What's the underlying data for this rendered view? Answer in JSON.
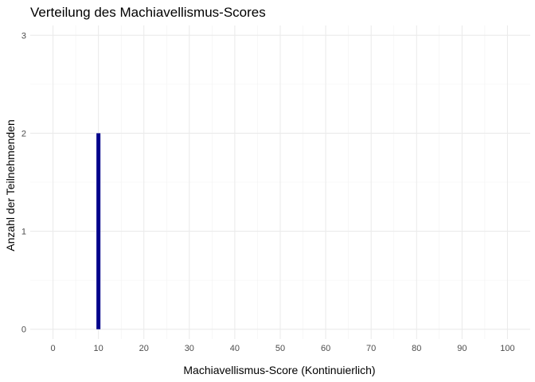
{
  "chart_data": {
    "type": "bar",
    "title": "Verteilung des Machiavellismus-Scores",
    "xlabel": "Machiavellismus-Score (Kontinuierlich)",
    "ylabel": "Anzahl der Teilnehmenden",
    "x_ticks": [
      "0",
      "10",
      "20",
      "30",
      "40",
      "50",
      "60",
      "70",
      "80",
      "90",
      "100"
    ],
    "y_ticks": [
      "0",
      "1",
      "2",
      "3"
    ],
    "xlim": [
      -5,
      105
    ],
    "ylim": [
      -0.1,
      3.1
    ],
    "bars": [
      {
        "x": 10,
        "count": 2
      }
    ],
    "bar_color": "#00008B",
    "grid": true,
    "legend": "none"
  }
}
